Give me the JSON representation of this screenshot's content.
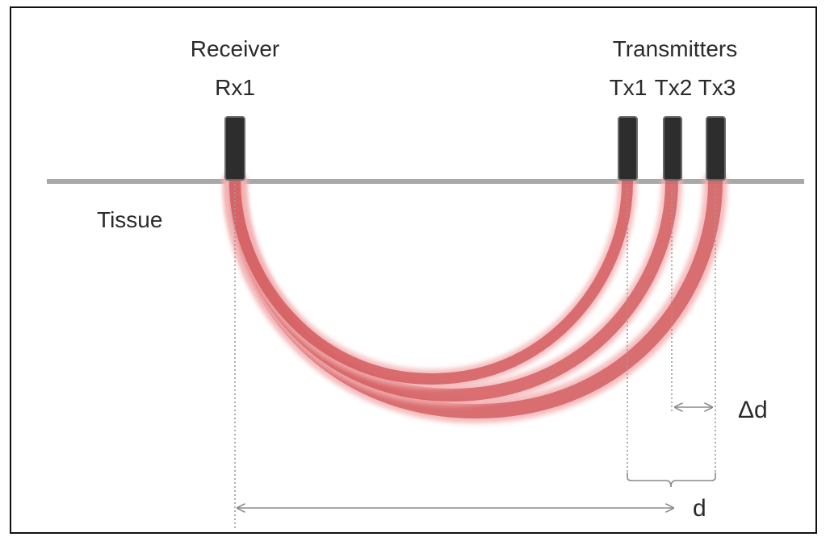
{
  "labels": {
    "receiver": "Receiver",
    "rx1": "Rx1",
    "transmitters": "Transmitters",
    "tx1": "Tx1",
    "tx2": "Tx2",
    "tx3": "Tx3",
    "tissue": "Tissue",
    "delta_d": "Δd",
    "d": "d"
  },
  "colors": {
    "probe": "#2d2d2d",
    "surface": "#a8a8a8",
    "photon_path": "#d9474b",
    "guide_line": "#9a9a9a",
    "frame": "#111111"
  },
  "icons": {
    "dimension_arrow": "double-headed-arrow",
    "brace": "curly-brace"
  }
}
